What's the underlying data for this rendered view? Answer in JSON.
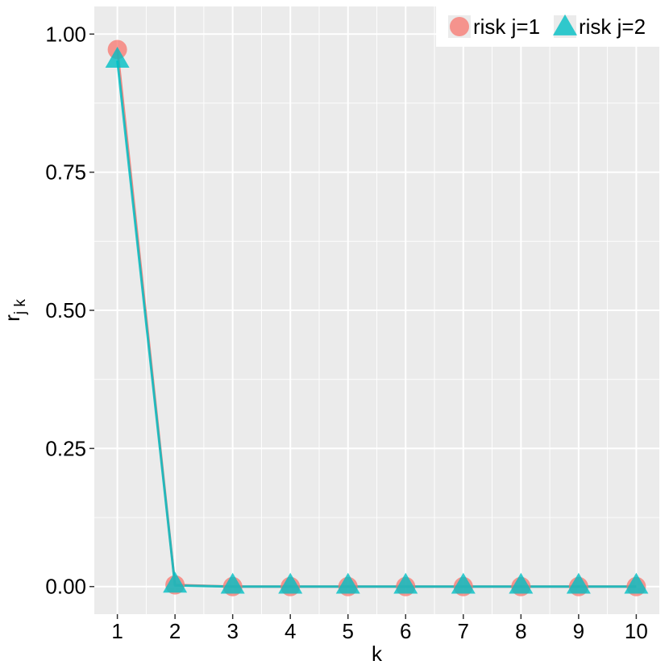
{
  "chart_data": {
    "type": "line",
    "xlabel": "k",
    "ylabel": {
      "main": "r",
      "subscript": "j k"
    },
    "x": [
      1,
      2,
      3,
      4,
      5,
      6,
      7,
      8,
      9,
      10
    ],
    "x_ticks": [
      "1",
      "2",
      "3",
      "4",
      "5",
      "6",
      "7",
      "8",
      "9",
      "10"
    ],
    "y_ticks": [
      "0.00",
      "0.25",
      "0.50",
      "0.75",
      "1.00"
    ],
    "y_tick_values": [
      0,
      0.25,
      0.5,
      0.75,
      1.0
    ],
    "xlim": [
      0.6,
      10.4
    ],
    "ylim": [
      -0.05,
      1.05
    ],
    "grid": true,
    "legend_position": "top-right",
    "series": [
      {
        "name": "risk j=1",
        "marker": "circle",
        "color": "#F8766D",
        "values": [
          0.972,
          0.003,
          0.0,
          0.0,
          0.0,
          0.0,
          0.0,
          0.0,
          0.0,
          0.0
        ]
      },
      {
        "name": "risk j=2",
        "marker": "triangle",
        "color": "#00BFC4",
        "values": [
          0.952,
          0.002,
          0.0,
          0.0,
          0.0,
          0.0,
          0.0,
          0.0,
          0.0,
          0.0
        ]
      }
    ]
  }
}
